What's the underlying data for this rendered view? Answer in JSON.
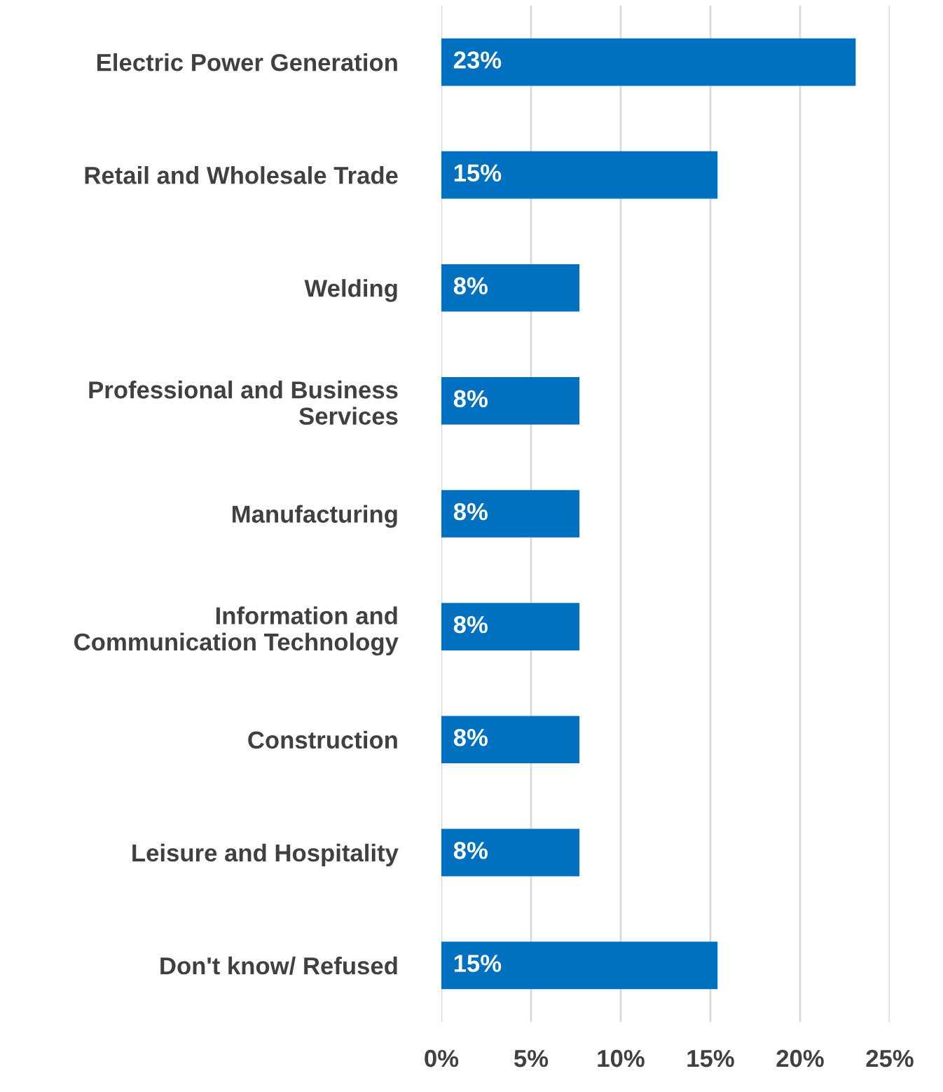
{
  "chart_data": {
    "type": "bar",
    "orientation": "horizontal",
    "categories": [
      "Electric Power Generation",
      "Retail and Wholesale Trade",
      "Welding",
      "Professional and Business\nServices",
      "Manufacturing",
      "Information and\nCommunication Technology",
      "Construction",
      "Leisure and Hospitality",
      "Don't know/ Refused"
    ],
    "values": [
      23.1,
      15.4,
      7.7,
      7.7,
      7.7,
      7.7,
      7.7,
      7.7,
      15.4
    ],
    "value_labels": [
      "23%",
      "15%",
      "8%",
      "8%",
      "8%",
      "8%",
      "8%",
      "8%",
      "15%"
    ],
    "color": "#0070c0",
    "xlim": [
      0,
      25
    ],
    "xticks": [
      {
        "value": 0,
        "label": "0%"
      },
      {
        "value": 5,
        "label": "5%"
      },
      {
        "value": 10,
        "label": "10%"
      },
      {
        "value": 15,
        "label": "15%"
      },
      {
        "value": 20,
        "label": "20%"
      },
      {
        "value": 25,
        "label": "25%"
      }
    ],
    "grid": "x"
  }
}
